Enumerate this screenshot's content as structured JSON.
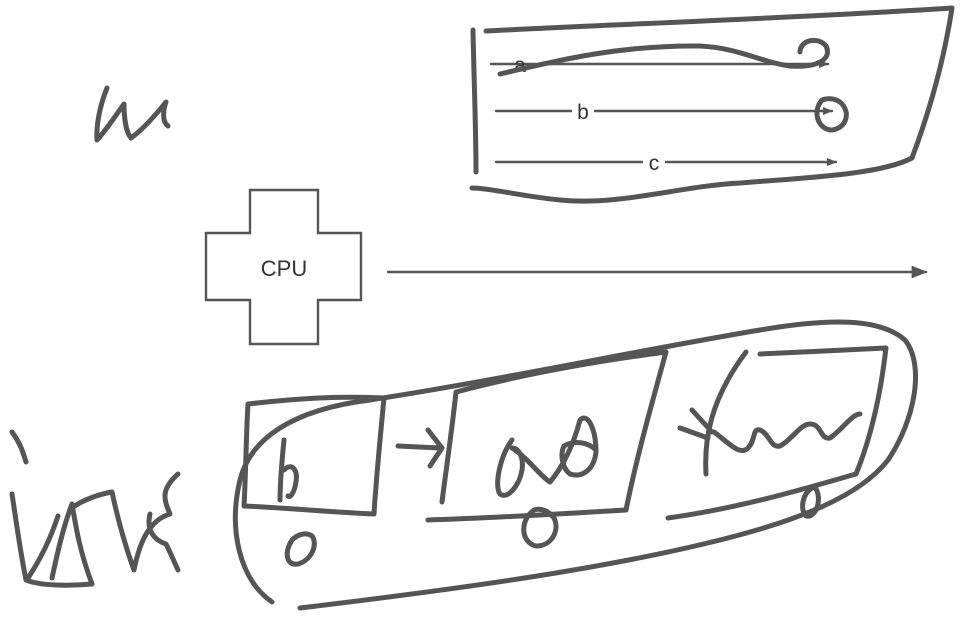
{
  "diagram": {
    "cpu_label": "CPU",
    "arrow_labels": [
      "a",
      "b",
      "c"
    ]
  }
}
